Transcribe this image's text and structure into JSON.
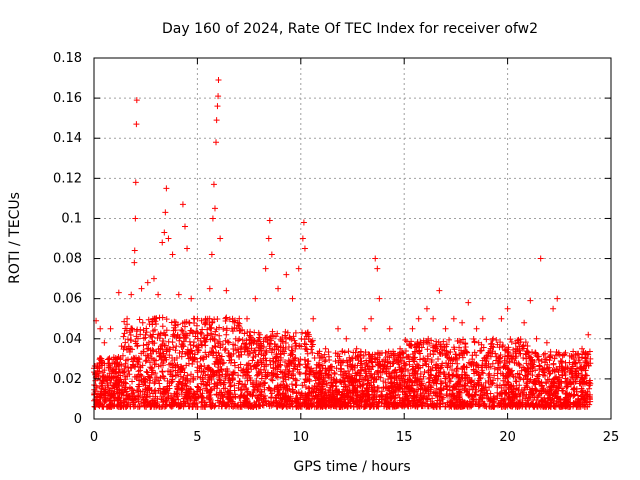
{
  "chart_data": {
    "type": "scatter",
    "title": "Day 160 of 2024, Rate Of TEC Index for receiver ofw2",
    "xlabel": "GPS time / hours",
    "ylabel": "ROTI / TECUs",
    "xlim": [
      0,
      25
    ],
    "ylim": [
      0,
      0.18
    ],
    "x_ticks": [
      "0",
      "5",
      "10",
      "15",
      "20",
      "25"
    ],
    "y_ticks": [
      "0",
      "0.02",
      "0.04",
      "0.06",
      "0.08",
      "0.1",
      "0.12",
      "0.14",
      "0.16",
      "0.18"
    ],
    "grid": true,
    "marker": "+",
    "color": "#ff0000",
    "series": [
      {
        "points": [
          [
            0.1,
            0.049
          ],
          [
            0.3,
            0.045
          ],
          [
            0.5,
            0.038
          ],
          [
            0.8,
            0.045
          ],
          [
            1.2,
            0.063
          ],
          [
            1.6,
            0.05
          ],
          [
            1.8,
            0.062
          ],
          [
            1.95,
            0.078
          ],
          [
            1.97,
            0.084
          ],
          [
            2.0,
            0.1
          ],
          [
            2.02,
            0.118
          ],
          [
            2.05,
            0.147
          ],
          [
            2.07,
            0.159
          ],
          [
            2.3,
            0.065
          ],
          [
            2.6,
            0.068
          ],
          [
            2.9,
            0.07
          ],
          [
            3.1,
            0.062
          ],
          [
            3.3,
            0.088
          ],
          [
            3.4,
            0.093
          ],
          [
            3.45,
            0.103
          ],
          [
            3.5,
            0.115
          ],
          [
            3.6,
            0.09
          ],
          [
            3.8,
            0.082
          ],
          [
            4.1,
            0.062
          ],
          [
            4.3,
            0.107
          ],
          [
            4.4,
            0.096
          ],
          [
            4.5,
            0.085
          ],
          [
            4.7,
            0.06
          ],
          [
            5.0,
            0.05
          ],
          [
            5.4,
            0.05
          ],
          [
            5.6,
            0.065
          ],
          [
            5.7,
            0.082
          ],
          [
            5.75,
            0.1
          ],
          [
            5.8,
            0.117
          ],
          [
            5.85,
            0.105
          ],
          [
            5.9,
            0.138
          ],
          [
            5.93,
            0.149
          ],
          [
            5.97,
            0.156
          ],
          [
            6.0,
            0.161
          ],
          [
            6.02,
            0.169
          ],
          [
            6.1,
            0.09
          ],
          [
            6.4,
            0.064
          ],
          [
            6.7,
            0.05
          ],
          [
            7.4,
            0.05
          ],
          [
            7.8,
            0.06
          ],
          [
            8.3,
            0.075
          ],
          [
            8.45,
            0.09
          ],
          [
            8.5,
            0.099
          ],
          [
            8.6,
            0.082
          ],
          [
            8.9,
            0.065
          ],
          [
            9.3,
            0.072
          ],
          [
            9.6,
            0.06
          ],
          [
            9.9,
            0.075
          ],
          [
            10.1,
            0.09
          ],
          [
            10.15,
            0.098
          ],
          [
            10.2,
            0.085
          ],
          [
            10.6,
            0.05
          ],
          [
            11.2,
            0.035
          ],
          [
            11.8,
            0.045
          ],
          [
            12.2,
            0.04
          ],
          [
            12.7,
            0.035
          ],
          [
            13.1,
            0.045
          ],
          [
            13.4,
            0.05
          ],
          [
            13.6,
            0.08
          ],
          [
            13.7,
            0.075
          ],
          [
            13.8,
            0.06
          ],
          [
            14.3,
            0.045
          ],
          [
            14.8,
            0.035
          ],
          [
            15.4,
            0.045
          ],
          [
            15.7,
            0.05
          ],
          [
            16.1,
            0.055
          ],
          [
            16.4,
            0.05
          ],
          [
            16.7,
            0.064
          ],
          [
            17.0,
            0.045
          ],
          [
            17.4,
            0.05
          ],
          [
            17.8,
            0.048
          ],
          [
            18.1,
            0.058
          ],
          [
            18.5,
            0.045
          ],
          [
            18.8,
            0.05
          ],
          [
            19.3,
            0.04
          ],
          [
            19.7,
            0.05
          ],
          [
            20.0,
            0.055
          ],
          [
            20.4,
            0.035
          ],
          [
            20.8,
            0.048
          ],
          [
            21.1,
            0.059
          ],
          [
            21.4,
            0.04
          ],
          [
            21.6,
            0.08
          ],
          [
            21.9,
            0.038
          ],
          [
            22.2,
            0.055
          ],
          [
            22.4,
            0.06
          ],
          [
            22.8,
            0.033
          ],
          [
            23.2,
            0.03
          ],
          [
            23.6,
            0.035
          ],
          [
            23.9,
            0.042
          ],
          [
            24.0,
            0.03
          ]
        ]
      }
    ]
  }
}
